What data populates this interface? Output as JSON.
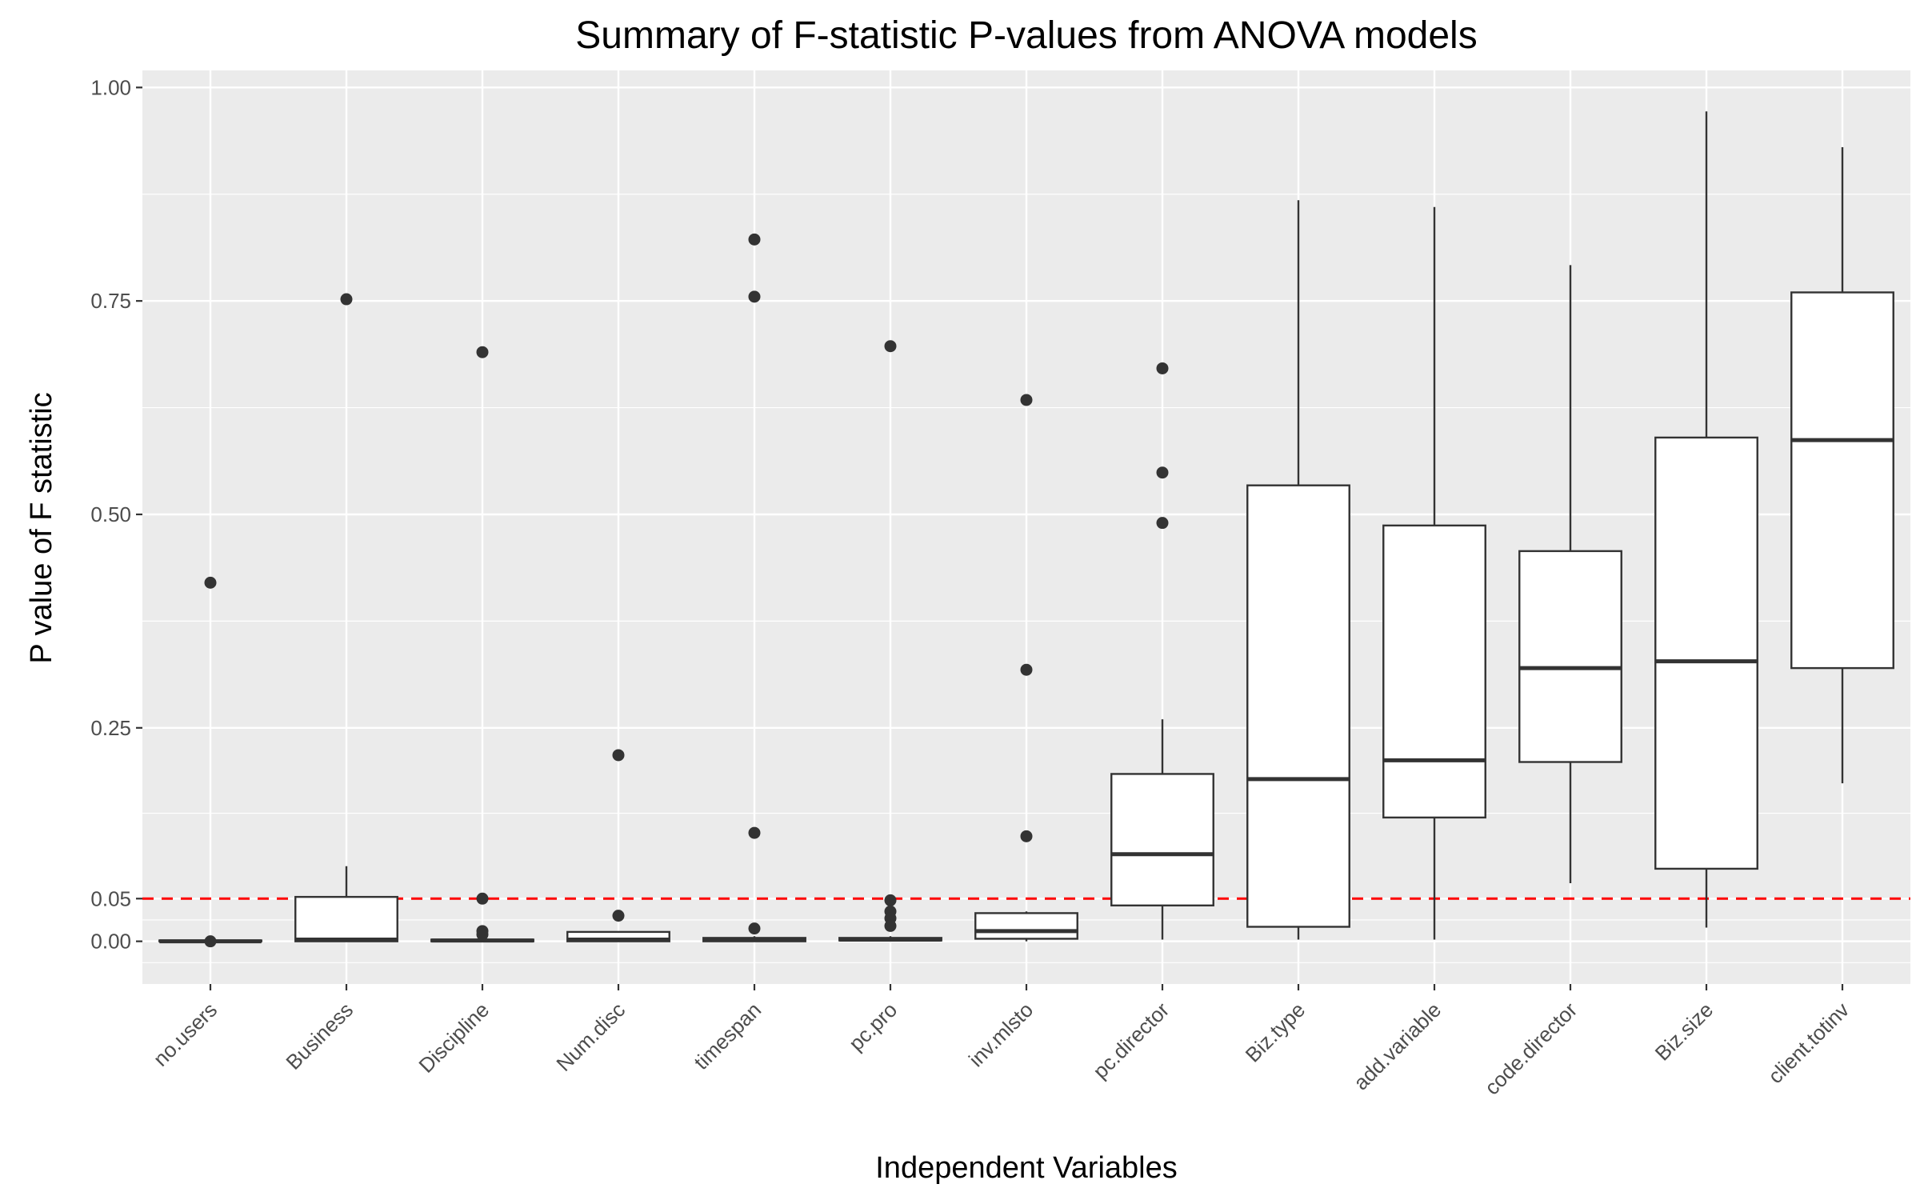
{
  "chart_data": {
    "type": "box",
    "title": "Summary of F-statistic P-values from ANOVA models",
    "xlabel": "Independent Variables",
    "ylabel": "P value of F statistic",
    "ylim": [
      -0.05,
      1.02
    ],
    "yticks": [
      0.0,
      0.05,
      0.25,
      0.5,
      0.75,
      1.0
    ],
    "ytick_labels": [
      "0.00",
      "0.05",
      "0.25",
      "0.50",
      "0.75",
      "1.00"
    ],
    "reference_line": {
      "y": 0.05,
      "color": "#ff0000",
      "style": "dashed"
    },
    "panel_background": "#ebebeb",
    "grid": true,
    "categories": [
      "no.users",
      "Business",
      "Discipline",
      "Num.disc",
      "timespan",
      "pc.pro",
      "inv.mlsto",
      "pc.director",
      "Biz.type",
      "add.variable",
      "code.director",
      "Biz.size",
      "client.totinv"
    ],
    "boxes": [
      {
        "category": "no.users",
        "whisker_low": 0.0,
        "q1": 0.0,
        "median": 0.0,
        "q3": 0.001,
        "whisker_high": 0.001,
        "outliers": [
          0.42,
          0.0
        ]
      },
      {
        "category": "Business",
        "whisker_low": 0.0,
        "q1": 0.0,
        "median": 0.002,
        "q3": 0.052,
        "whisker_high": 0.088,
        "outliers": [
          0.752
        ]
      },
      {
        "category": "Discipline",
        "whisker_low": 0.0,
        "q1": 0.0,
        "median": 0.001,
        "q3": 0.002,
        "whisker_high": 0.003,
        "outliers": [
          0.69,
          0.05,
          0.012,
          0.008
        ]
      },
      {
        "category": "Num.disc",
        "whisker_low": 0.0,
        "q1": 0.0,
        "median": 0.002,
        "q3": 0.011,
        "whisker_high": 0.011,
        "outliers": [
          0.218,
          0.03
        ]
      },
      {
        "category": "timespan",
        "whisker_low": 0.0,
        "q1": 0.0,
        "median": 0.002,
        "q3": 0.004,
        "whisker_high": 0.006,
        "outliers": [
          0.822,
          0.755,
          0.127,
          0.015
        ]
      },
      {
        "category": "pc.pro",
        "whisker_low": 0.0,
        "q1": 0.001,
        "median": 0.002,
        "q3": 0.004,
        "whisker_high": 0.006,
        "outliers": [
          0.697,
          0.048,
          0.035,
          0.027,
          0.018
        ]
      },
      {
        "category": "inv.mlsto",
        "whisker_low": 0.0,
        "q1": 0.003,
        "median": 0.012,
        "q3": 0.033,
        "whisker_high": 0.035,
        "outliers": [
          0.634,
          0.318,
          0.123
        ]
      },
      {
        "category": "pc.director",
        "whisker_low": 0.002,
        "q1": 0.042,
        "median": 0.102,
        "q3": 0.196,
        "whisker_high": 0.26,
        "outliers": [
          0.671,
          0.549,
          0.49
        ]
      },
      {
        "category": "Biz.type",
        "whisker_low": 0.002,
        "q1": 0.017,
        "median": 0.19,
        "q3": 0.534,
        "whisker_high": 0.868,
        "outliers": []
      },
      {
        "category": "add.variable",
        "whisker_low": 0.002,
        "q1": 0.145,
        "median": 0.212,
        "q3": 0.487,
        "whisker_high": 0.86,
        "outliers": []
      },
      {
        "category": "code.director",
        "whisker_low": 0.068,
        "q1": 0.21,
        "median": 0.32,
        "q3": 0.457,
        "whisker_high": 0.792,
        "outliers": []
      },
      {
        "category": "Biz.size",
        "whisker_low": 0.016,
        "q1": 0.085,
        "median": 0.328,
        "q3": 0.59,
        "whisker_high": 0.972,
        "outliers": []
      },
      {
        "category": "client.totinv",
        "whisker_low": 0.185,
        "q1": 0.32,
        "median": 0.587,
        "q3": 0.76,
        "whisker_high": 0.93,
        "outliers": []
      }
    ]
  }
}
